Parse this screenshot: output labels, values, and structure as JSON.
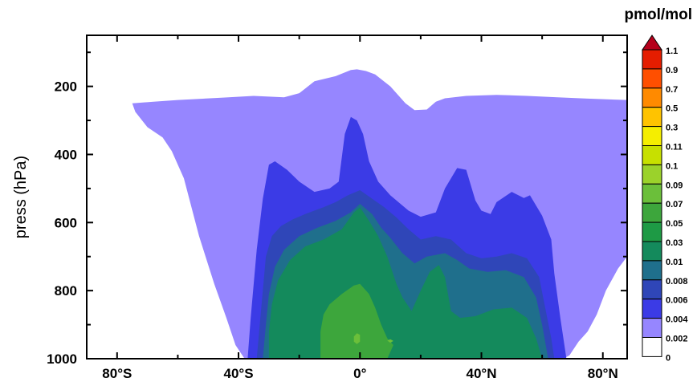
{
  "chart_data": {
    "type": "filled-contour",
    "title": "",
    "xlabel": "",
    "ylabel": "press (hPa)",
    "units": "pmol/mol",
    "xlim": [
      -90,
      88
    ],
    "ylim": [
      1000,
      50
    ],
    "y_reversed": true,
    "x_ticks": [
      -80,
      -40,
      0,
      40,
      80
    ],
    "x_tick_labels": [
      "80°S",
      "40°S",
      "0°",
      "40°N",
      "80°N"
    ],
    "y_ticks": [
      200,
      400,
      600,
      800,
      1000
    ],
    "y_tick_labels": [
      "200",
      "400",
      "600",
      "800",
      "1000"
    ],
    "colorbar": {
      "levels": [
        "1.1",
        "0.9",
        "0.7",
        "0.5",
        "0.3",
        "0.11",
        "0.1",
        "0.09",
        "0.07",
        "0.05",
        "0.03",
        "0.01",
        "0.008",
        "0.006",
        "0.004",
        "0.002",
        "0"
      ],
      "colors": [
        "#b5001b",
        "#e51d00",
        "#ff4f00",
        "#ff8a00",
        "#ffc300",
        "#f5ee00",
        "#c7e000",
        "#9bd22b",
        "#6bbf3a",
        "#3da63c",
        "#1e9a45",
        "#148a5c",
        "#1f6f8c",
        "#2f46b8",
        "#3b3be6",
        "#9686ff",
        "#ffffff"
      ]
    },
    "contours": [
      {
        "level": "0.002",
        "color": "#9686ff",
        "path": [
          [
            -75,
            250
          ],
          [
            -68,
            245
          ],
          [
            -60,
            240
          ],
          [
            -45,
            233
          ],
          [
            -35,
            228
          ],
          [
            -25,
            232
          ],
          [
            -20,
            220
          ],
          [
            -15,
            185
          ],
          [
            -8,
            170
          ],
          [
            -3,
            152
          ],
          [
            -1,
            150
          ],
          [
            2,
            155
          ],
          [
            5,
            165
          ],
          [
            10,
            200
          ],
          [
            15,
            250
          ],
          [
            18,
            270
          ],
          [
            22,
            268
          ],
          [
            25,
            245
          ],
          [
            28,
            235
          ],
          [
            35,
            228
          ],
          [
            45,
            225
          ],
          [
            55,
            228
          ],
          [
            65,
            232
          ],
          [
            75,
            236
          ],
          [
            88,
            240
          ],
          [
            88,
            700
          ],
          [
            85,
            735
          ],
          [
            81,
            800
          ],
          [
            78,
            870
          ],
          [
            75,
            920
          ],
          [
            72,
            950
          ],
          [
            69,
            990
          ],
          [
            67,
            1000
          ],
          [
            -38,
            1000
          ],
          [
            -41,
            960
          ],
          [
            -44,
            880
          ],
          [
            -48,
            780
          ],
          [
            -53,
            640
          ],
          [
            -58,
            470
          ],
          [
            -62,
            390
          ],
          [
            -65,
            350
          ],
          [
            -70,
            320
          ],
          [
            -74,
            275
          ]
        ]
      },
      {
        "level": "0.004",
        "color": "#3b3be6",
        "path": [
          [
            -37,
            1000
          ],
          [
            -36,
            880
          ],
          [
            -34,
            680
          ],
          [
            -32,
            530
          ],
          [
            -30,
            430
          ],
          [
            -28,
            420
          ],
          [
            -24,
            445
          ],
          [
            -20,
            480
          ],
          [
            -15,
            510
          ],
          [
            -10,
            500
          ],
          [
            -7,
            480
          ],
          [
            -5,
            340
          ],
          [
            -3,
            290
          ],
          [
            -1,
            300
          ],
          [
            1,
            340
          ],
          [
            3,
            420
          ],
          [
            6,
            480
          ],
          [
            10,
            520
          ],
          [
            16,
            565
          ],
          [
            20,
            583
          ],
          [
            25,
            570
          ],
          [
            28,
            500
          ],
          [
            32,
            440
          ],
          [
            35,
            445
          ],
          [
            38,
            535
          ],
          [
            40,
            565
          ],
          [
            43,
            575
          ],
          [
            45,
            540
          ],
          [
            50,
            510
          ],
          [
            54,
            528
          ],
          [
            56,
            520
          ],
          [
            60,
            580
          ],
          [
            63,
            650
          ],
          [
            64,
            750
          ],
          [
            66,
            880
          ],
          [
            68,
            1000
          ]
        ]
      },
      {
        "level": "0.006",
        "color": "#2f46b8",
        "path": [
          [
            -34,
            1000
          ],
          [
            -33,
            900
          ],
          [
            -32,
            800
          ],
          [
            -31,
            700
          ],
          [
            -29,
            640
          ],
          [
            -26,
            610
          ],
          [
            -22,
            590
          ],
          [
            -18,
            575
          ],
          [
            -12,
            555
          ],
          [
            -8,
            540
          ],
          [
            -4,
            520
          ],
          [
            0,
            505
          ],
          [
            4,
            530
          ],
          [
            8,
            555
          ],
          [
            12,
            585
          ],
          [
            16,
            620
          ],
          [
            20,
            650
          ],
          [
            25,
            640
          ],
          [
            30,
            650
          ],
          [
            35,
            690
          ],
          [
            40,
            705
          ],
          [
            45,
            700
          ],
          [
            50,
            690
          ],
          [
            55,
            705
          ],
          [
            59,
            760
          ],
          [
            61,
            850
          ],
          [
            63,
            940
          ],
          [
            64,
            1000
          ]
        ]
      },
      {
        "level": "0.008",
        "color": "#1f6f8c",
        "path": [
          [
            -32,
            1000
          ],
          [
            -31,
            900
          ],
          [
            -30,
            810
          ],
          [
            -28,
            730
          ],
          [
            -25,
            680
          ],
          [
            -20,
            640
          ],
          [
            -14,
            615
          ],
          [
            -8,
            595
          ],
          [
            -3,
            570
          ],
          [
            0,
            545
          ],
          [
            4,
            575
          ],
          [
            7,
            615
          ],
          [
            10,
            645
          ],
          [
            14,
            690
          ],
          [
            18,
            720
          ],
          [
            22,
            700
          ],
          [
            28,
            690
          ],
          [
            32,
            710
          ],
          [
            36,
            735
          ],
          [
            42,
            745
          ],
          [
            48,
            740
          ],
          [
            54,
            760
          ],
          [
            58,
            820
          ],
          [
            60,
            900
          ],
          [
            62,
            1000
          ]
        ]
      },
      {
        "level": "0.01",
        "color": "#148a5c",
        "path": [
          [
            -30,
            1000
          ],
          [
            -30,
            920
          ],
          [
            -29,
            840
          ],
          [
            -27,
            770
          ],
          [
            -23,
            710
          ],
          [
            -18,
            670
          ],
          [
            -12,
            650
          ],
          [
            -6,
            620
          ],
          [
            -2,
            570
          ],
          [
            0,
            555
          ],
          [
            3,
            595
          ],
          [
            6,
            640
          ],
          [
            9,
            700
          ],
          [
            12,
            780
          ],
          [
            14,
            820
          ],
          [
            17,
            860
          ],
          [
            20,
            800
          ],
          [
            23,
            745
          ],
          [
            26,
            725
          ],
          [
            28,
            760
          ],
          [
            30,
            860
          ],
          [
            33,
            880
          ],
          [
            38,
            875
          ],
          [
            44,
            855
          ],
          [
            50,
            850
          ],
          [
            55,
            880
          ],
          [
            58,
            940
          ],
          [
            60,
            1000
          ]
        ]
      },
      {
        "level": "0.03",
        "color": "#3da63c",
        "path": [
          [
            -13,
            1000
          ],
          [
            -13,
            920
          ],
          [
            -12,
            870
          ],
          [
            -10,
            840
          ],
          [
            -6,
            810
          ],
          [
            -2,
            785
          ],
          [
            0,
            780
          ],
          [
            3,
            810
          ],
          [
            5,
            850
          ],
          [
            7,
            900
          ],
          [
            9,
            940
          ],
          [
            11,
            960
          ],
          [
            9,
            1000
          ]
        ]
      },
      {
        "level": "0.05",
        "color": "#6bbf3a",
        "path": [
          [
            -2,
            935
          ],
          [
            -1,
            925
          ],
          [
            0,
            930
          ],
          [
            0,
            950
          ],
          [
            -1,
            957
          ],
          [
            -2,
            950
          ]
        ]
      },
      {
        "level": "0.05",
        "color": "#6bbf3a",
        "path": [
          [
            9,
            947
          ],
          [
            10,
            943
          ],
          [
            11,
            948
          ],
          [
            10,
            953
          ]
        ]
      }
    ]
  }
}
